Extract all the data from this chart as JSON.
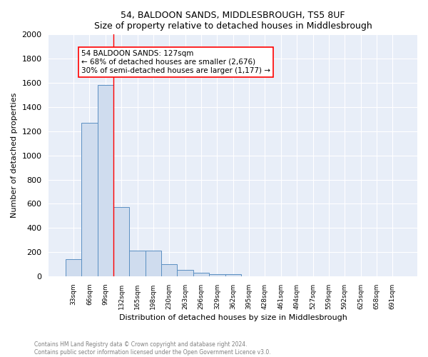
{
  "title": "54, BALDOON SANDS, MIDDLESBROUGH, TS5 8UF",
  "subtitle": "Size of property relative to detached houses in Middlesbrough",
  "xlabel": "Distribution of detached houses by size in Middlesbrough",
  "ylabel": "Number of detached properties",
  "footnote1": "Contains HM Land Registry data © Crown copyright and database right 2024.",
  "footnote2": "Contains public sector information licensed under the Open Government Licence v3.0.",
  "bar_labels": [
    "33sqm",
    "66sqm",
    "99sqm",
    "132sqm",
    "165sqm",
    "198sqm",
    "230sqm",
    "263sqm",
    "296sqm",
    "329sqm",
    "362sqm",
    "395sqm",
    "428sqm",
    "461sqm",
    "494sqm",
    "527sqm",
    "559sqm",
    "592sqm",
    "625sqm",
    "658sqm",
    "691sqm"
  ],
  "bar_values": [
    140,
    1270,
    1580,
    570,
    215,
    215,
    100,
    50,
    28,
    20,
    20,
    0,
    0,
    0,
    0,
    0,
    0,
    0,
    0,
    0,
    0
  ],
  "bar_color": "#cfdcee",
  "bar_edge_color": "#5a8fc2",
  "background_color": "#e8eef8",
  "grid_color": "#ffffff",
  "vline_color": "red",
  "vline_x_index": 3,
  "annotation_line1": "54 BALDOON SANDS: 127sqm",
  "annotation_line2": "← 68% of detached houses are smaller (2,676)",
  "annotation_line3": "30% of semi-detached houses are larger (1,177) →",
  "ylim": [
    0,
    2000
  ],
  "yticks": [
    0,
    200,
    400,
    600,
    800,
    1000,
    1200,
    1400,
    1600,
    1800,
    2000
  ]
}
